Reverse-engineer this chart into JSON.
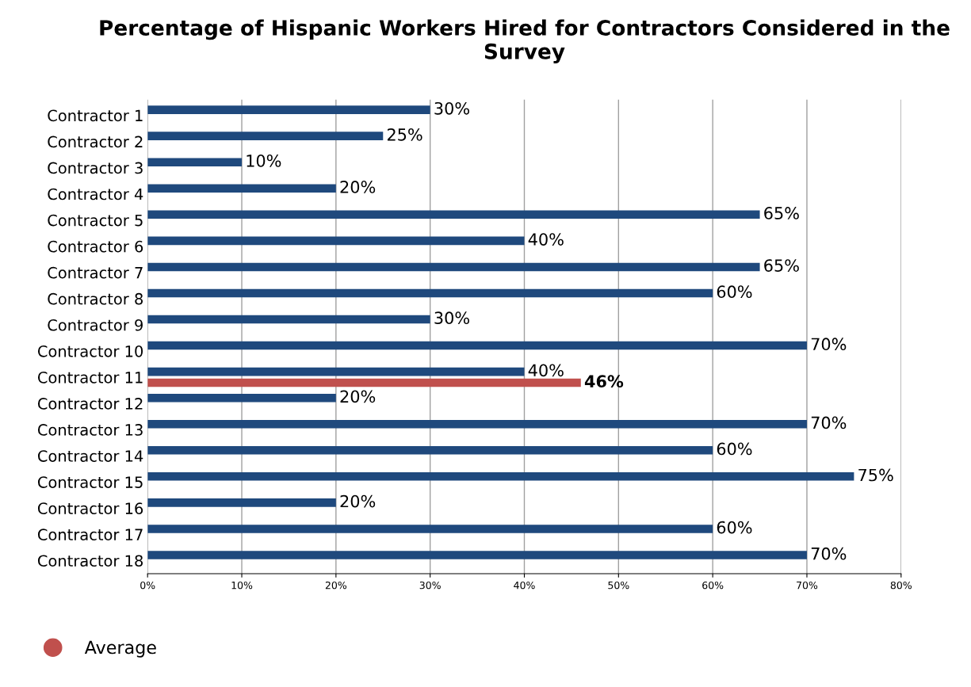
{
  "chart_data": {
    "type": "bar",
    "orientation": "horizontal",
    "title": "Percentage of Hispanic Workers Hired for Contractors Considered in the Survey",
    "categories": [
      "Contractor 1",
      "Contractor 2",
      "Contractor 3",
      "Contractor 4",
      "Contractor 5",
      "Contractor 6",
      "Contractor 7",
      "Contractor 8",
      "Contractor 9",
      "Contractor 10",
      "Contractor 11",
      "Contractor 12",
      "Contractor 13",
      "Contractor 14",
      "Contractor 15",
      "Contractor 16",
      "Contractor 17",
      "Contractor 18"
    ],
    "series": [
      {
        "color": "#1f497d",
        "values": [
          30,
          25,
          10,
          20,
          65,
          40,
          65,
          60,
          30,
          70,
          40,
          20,
          70,
          60,
          75,
          20,
          60,
          70
        ],
        "value_labels": [
          "30%",
          "25%",
          "10%",
          "20%",
          "65%",
          "40%",
          "65%",
          "60%",
          "30%",
          "70%",
          "40%",
          "20%",
          "70%",
          "60%",
          "75%",
          "20%",
          "60%",
          "70%"
        ]
      },
      {
        "name": "Average",
        "color": "#c0504d",
        "values": [
          null,
          null,
          null,
          null,
          null,
          null,
          null,
          null,
          null,
          null,
          46,
          null,
          null,
          null,
          null,
          null,
          null,
          null
        ],
        "value_labels": [
          null,
          null,
          null,
          null,
          null,
          null,
          null,
          null,
          null,
          null,
          "46%",
          null,
          null,
          null,
          null,
          null,
          null,
          null
        ]
      }
    ],
    "xlim": [
      0,
      80
    ],
    "xticks": [
      {
        "value": 0,
        "label": "0%"
      },
      {
        "value": 10,
        "label": "10%"
      },
      {
        "value": 20,
        "label": "20%"
      },
      {
        "value": 30,
        "label": "30%"
      },
      {
        "value": 40,
        "label": "40%"
      },
      {
        "value": 50,
        "label": "50%"
      },
      {
        "value": 60,
        "label": "60%"
      },
      {
        "value": 70,
        "label": "70%"
      },
      {
        "value": 80,
        "label": "80%"
      }
    ],
    "grid": "x",
    "legend": "bottom left"
  }
}
